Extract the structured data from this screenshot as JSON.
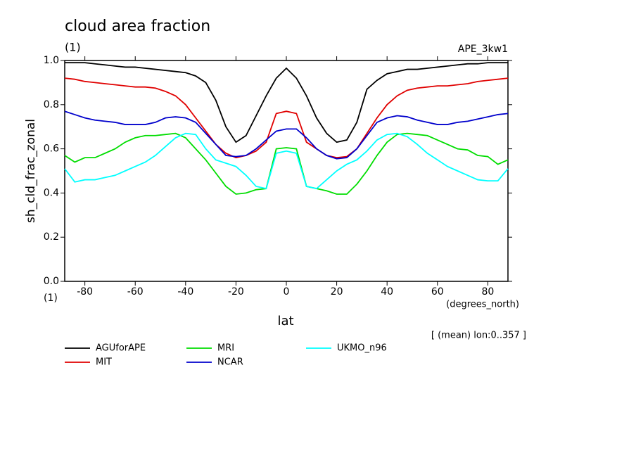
{
  "chart_data": {
    "type": "line",
    "title": "cloud area fraction",
    "subtitle": "(1)",
    "experiment": "APE_3kw1",
    "y_label": "sh_cld_frac_zonal",
    "y_units": "(1)",
    "x_label": "lat",
    "x_units": "(degrees_north)",
    "note": "[ (mean) lon:0..357 ]",
    "x": [
      -88,
      -84,
      -80,
      -76,
      -72,
      -68,
      -64,
      -60,
      -56,
      -52,
      -48,
      -44,
      -40,
      -36,
      -32,
      -28,
      -24,
      -20,
      -16,
      -12,
      -8,
      -4,
      0,
      4,
      8,
      12,
      16,
      20,
      24,
      28,
      32,
      36,
      40,
      44,
      48,
      52,
      56,
      60,
      64,
      68,
      72,
      76,
      80,
      84,
      88
    ],
    "xlim": [
      -88,
      88
    ],
    "xticks": [
      -80,
      -60,
      -40,
      -20,
      0,
      20,
      40,
      60,
      80
    ],
    "ylim": [
      0,
      1
    ],
    "yticks": [
      {
        "value": 0,
        "label": "0.0"
      },
      {
        "value": 0.2,
        "label": "0.2"
      },
      {
        "value": 0.4,
        "label": "0.4"
      },
      {
        "value": 0.6,
        "label": "0.6"
      },
      {
        "value": 0.8,
        "label": "0.8"
      },
      {
        "value": 1,
        "label": "1.0"
      }
    ],
    "series": [
      {
        "name": "AGUforAPE",
        "color": "#000000",
        "values": [
          0.99,
          0.99,
          0.99,
          0.985,
          0.98,
          0.975,
          0.97,
          0.97,
          0.965,
          0.96,
          0.955,
          0.95,
          0.945,
          0.93,
          0.9,
          0.82,
          0.7,
          0.63,
          0.66,
          0.75,
          0.84,
          0.92,
          0.965,
          0.92,
          0.84,
          0.74,
          0.67,
          0.63,
          0.64,
          0.72,
          0.87,
          0.91,
          0.94,
          0.95,
          0.96,
          0.96,
          0.965,
          0.97,
          0.975,
          0.98,
          0.985,
          0.985,
          0.99,
          0.99,
          0.99
        ]
      },
      {
        "name": "MIT",
        "color": "#e00000",
        "values": [
          0.92,
          0.915,
          0.905,
          0.9,
          0.895,
          0.89,
          0.885,
          0.88,
          0.88,
          0.875,
          0.86,
          0.84,
          0.8,
          0.74,
          0.68,
          0.62,
          0.58,
          0.56,
          0.57,
          0.59,
          0.63,
          0.76,
          0.77,
          0.76,
          0.63,
          0.6,
          0.57,
          0.56,
          0.565,
          0.6,
          0.67,
          0.74,
          0.8,
          0.84,
          0.865,
          0.875,
          0.88,
          0.885,
          0.885,
          0.89,
          0.895,
          0.905,
          0.91,
          0.915,
          0.92
        ]
      },
      {
        "name": "MRI",
        "color": "#00dd00",
        "values": [
          0.57,
          0.54,
          0.56,
          0.56,
          0.58,
          0.6,
          0.63,
          0.65,
          0.66,
          0.66,
          0.665,
          0.67,
          0.65,
          0.6,
          0.55,
          0.49,
          0.43,
          0.395,
          0.4,
          0.415,
          0.42,
          0.6,
          0.605,
          0.6,
          0.43,
          0.42,
          0.41,
          0.395,
          0.395,
          0.44,
          0.5,
          0.57,
          0.63,
          0.665,
          0.67,
          0.665,
          0.66,
          0.64,
          0.62,
          0.6,
          0.595,
          0.57,
          0.565,
          0.53,
          0.55
        ]
      },
      {
        "name": "NCAR",
        "color": "#0000cc",
        "values": [
          0.77,
          0.755,
          0.74,
          0.73,
          0.725,
          0.72,
          0.71,
          0.71,
          0.71,
          0.72,
          0.74,
          0.745,
          0.74,
          0.72,
          0.67,
          0.62,
          0.57,
          0.565,
          0.57,
          0.6,
          0.64,
          0.68,
          0.69,
          0.69,
          0.65,
          0.6,
          0.57,
          0.555,
          0.56,
          0.6,
          0.66,
          0.72,
          0.74,
          0.75,
          0.745,
          0.73,
          0.72,
          0.71,
          0.71,
          0.72,
          0.725,
          0.735,
          0.745,
          0.755,
          0.76
        ]
      },
      {
        "name": "UKMO_n96",
        "color": "#00ffff",
        "values": [
          0.51,
          0.45,
          0.46,
          0.46,
          0.47,
          0.48,
          0.5,
          0.52,
          0.54,
          0.57,
          0.61,
          0.65,
          0.67,
          0.665,
          0.6,
          0.55,
          0.535,
          0.52,
          0.48,
          0.43,
          0.42,
          0.58,
          0.59,
          0.58,
          0.43,
          0.42,
          0.46,
          0.5,
          0.53,
          0.55,
          0.59,
          0.64,
          0.665,
          0.67,
          0.655,
          0.62,
          0.58,
          0.55,
          0.52,
          0.5,
          0.48,
          0.46,
          0.455,
          0.455,
          0.51
        ]
      }
    ]
  }
}
